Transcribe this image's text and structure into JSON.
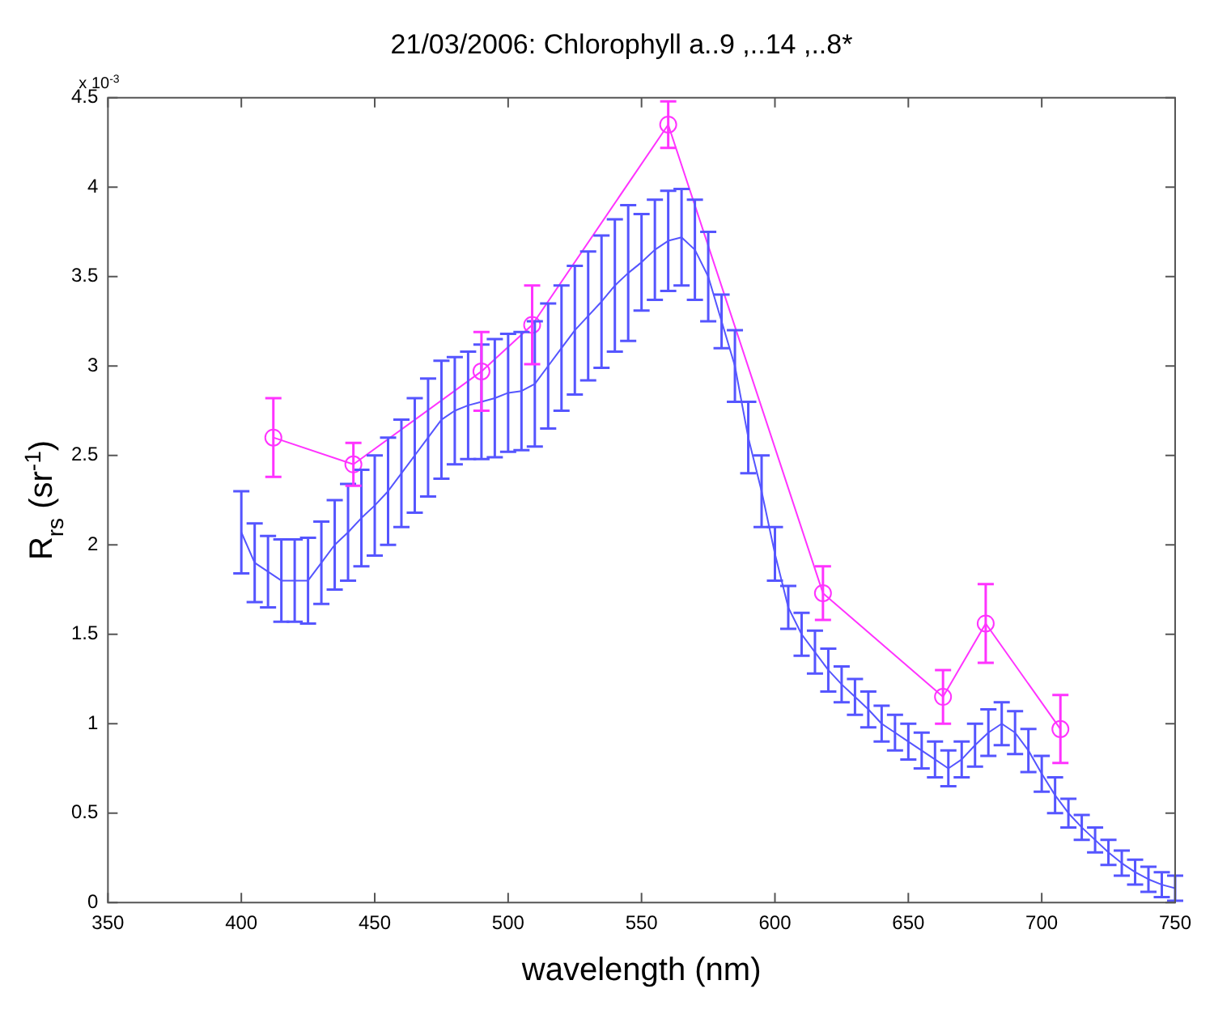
{
  "chart_data": {
    "type": "line",
    "title": "21/03/2006: Chlorophyll a..9 ,..14 ,..8*",
    "xlabel": "wavelength (nm)",
    "ylabel": "R$_{rs}$ (sr$^{-1}$)",
    "annotations": [
      "x 10$^{-3}$"
    ],
    "xlim": [
      350,
      750
    ],
    "xticks": [
      350,
      400,
      450,
      500,
      550,
      600,
      650,
      700,
      750
    ],
    "ylim": [
      0,
      4.5
    ],
    "yticks": [
      0,
      0.5,
      1,
      1.5,
      2,
      2.5,
      3,
      3.5,
      4,
      4.5
    ],
    "series": [
      {
        "color": "#5555ff",
        "marker": "none",
        "x": [
          400,
          405,
          410,
          415,
          420,
          425,
          430,
          435,
          440,
          445,
          450,
          455,
          460,
          465,
          470,
          475,
          480,
          485,
          490,
          495,
          500,
          505,
          510,
          515,
          520,
          525,
          530,
          535,
          540,
          545,
          550,
          555,
          560,
          565,
          570,
          575,
          580,
          585,
          590,
          595,
          600,
          605,
          610,
          615,
          620,
          625,
          630,
          635,
          640,
          645,
          650,
          655,
          660,
          665,
          670,
          675,
          680,
          685,
          690,
          695,
          700,
          705,
          710,
          715,
          720,
          725,
          730,
          735,
          740,
          745,
          750
        ],
        "values": [
          2.07,
          1.9,
          1.85,
          1.8,
          1.8,
          1.8,
          1.9,
          2.0,
          2.07,
          2.15,
          2.22,
          2.3,
          2.4,
          2.5,
          2.6,
          2.7,
          2.75,
          2.78,
          2.8,
          2.82,
          2.85,
          2.86,
          2.9,
          3.0,
          3.1,
          3.2,
          3.28,
          3.36,
          3.45,
          3.52,
          3.58,
          3.65,
          3.7,
          3.72,
          3.65,
          3.5,
          3.25,
          3.0,
          2.6,
          2.3,
          1.95,
          1.65,
          1.5,
          1.4,
          1.3,
          1.22,
          1.15,
          1.08,
          1.0,
          0.95,
          0.9,
          0.85,
          0.8,
          0.75,
          0.8,
          0.88,
          0.95,
          1.0,
          0.95,
          0.85,
          0.72,
          0.6,
          0.5,
          0.42,
          0.35,
          0.28,
          0.22,
          0.17,
          0.13,
          0.1,
          0.08
        ],
        "errors": [
          0.23,
          0.22,
          0.2,
          0.23,
          0.23,
          0.24,
          0.23,
          0.25,
          0.27,
          0.27,
          0.28,
          0.3,
          0.3,
          0.32,
          0.33,
          0.33,
          0.3,
          0.3,
          0.32,
          0.33,
          0.33,
          0.33,
          0.35,
          0.35,
          0.35,
          0.36,
          0.36,
          0.37,
          0.37,
          0.38,
          0.27,
          0.28,
          0.28,
          0.27,
          0.28,
          0.25,
          0.15,
          0.2,
          0.2,
          0.2,
          0.15,
          0.12,
          0.12,
          0.12,
          0.12,
          0.1,
          0.1,
          0.1,
          0.1,
          0.1,
          0.1,
          0.1,
          0.1,
          0.1,
          0.1,
          0.12,
          0.13,
          0.12,
          0.12,
          0.12,
          0.1,
          0.1,
          0.08,
          0.07,
          0.07,
          0.07,
          0.07,
          0.07,
          0.07,
          0.07,
          0.07
        ]
      },
      {
        "color": "#ff33ff",
        "marker": "circle",
        "x": [
          412,
          442,
          490,
          509,
          560,
          618,
          663,
          679,
          707
        ],
        "values": [
          2.6,
          2.45,
          2.97,
          3.23,
          4.35,
          1.73,
          1.15,
          1.56,
          0.97
        ],
        "errors": [
          0.22,
          0.12,
          0.22,
          0.22,
          0.13,
          0.15,
          0.15,
          0.22,
          0.19
        ]
      }
    ]
  }
}
